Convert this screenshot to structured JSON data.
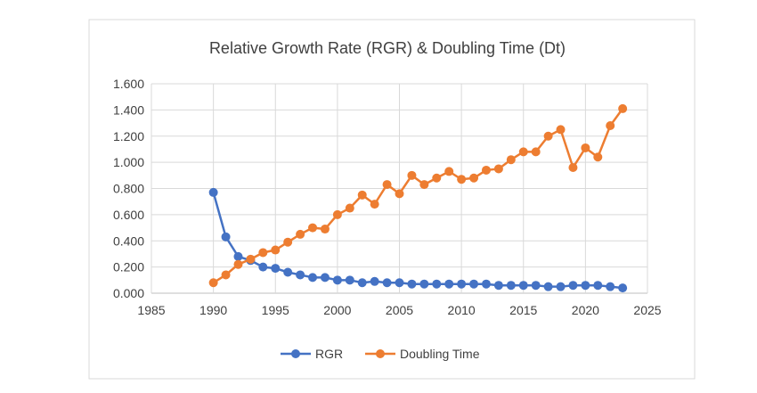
{
  "chart_data": {
    "type": "line",
    "title": "Relative Growth Rate (RGR) & Doubling Time  (Dt)",
    "xlabel": "",
    "ylabel": "",
    "xlim": [
      1985,
      2025
    ],
    "ylim": [
      0,
      1.6
    ],
    "x_ticks": [
      "1985",
      "1990",
      "1995",
      "2000",
      "2005",
      "2010",
      "2015",
      "2020",
      "2025"
    ],
    "y_ticks": [
      "0.000",
      "0.200",
      "0.400",
      "0.600",
      "0.800",
      "1.000",
      "1.200",
      "1.400",
      "1.600"
    ],
    "grid": true,
    "legend_position": "bottom",
    "x": [
      1990,
      1991,
      1992,
      1993,
      1994,
      1995,
      1996,
      1997,
      1998,
      1999,
      2000,
      2001,
      2002,
      2003,
      2004,
      2005,
      2006,
      2007,
      2008,
      2009,
      2010,
      2011,
      2012,
      2013,
      2014,
      2015,
      2016,
      2017,
      2018,
      2019,
      2020,
      2021,
      2022,
      2023
    ],
    "series": [
      {
        "name": "RGR",
        "color": "#4472C4",
        "values": [
          0.77,
          0.43,
          0.28,
          0.25,
          0.2,
          0.19,
          0.16,
          0.14,
          0.12,
          0.12,
          0.1,
          0.1,
          0.08,
          0.09,
          0.08,
          0.08,
          0.07,
          0.07,
          0.07,
          0.07,
          0.07,
          0.07,
          0.07,
          0.06,
          0.06,
          0.06,
          0.06,
          0.05,
          0.05,
          0.06,
          0.06,
          0.06,
          0.05,
          0.04
        ]
      },
      {
        "name": "Doubling Time",
        "color": "#ED7D31",
        "values": [
          0.08,
          0.14,
          0.22,
          0.26,
          0.31,
          0.33,
          0.39,
          0.45,
          0.5,
          0.49,
          0.6,
          0.65,
          0.75,
          0.68,
          0.83,
          0.76,
          0.9,
          0.83,
          0.88,
          0.93,
          0.87,
          0.88,
          0.94,
          0.95,
          1.02,
          1.08,
          1.08,
          1.2,
          1.25,
          0.96,
          1.11,
          1.04,
          1.28,
          1.41
        ]
      }
    ]
  }
}
